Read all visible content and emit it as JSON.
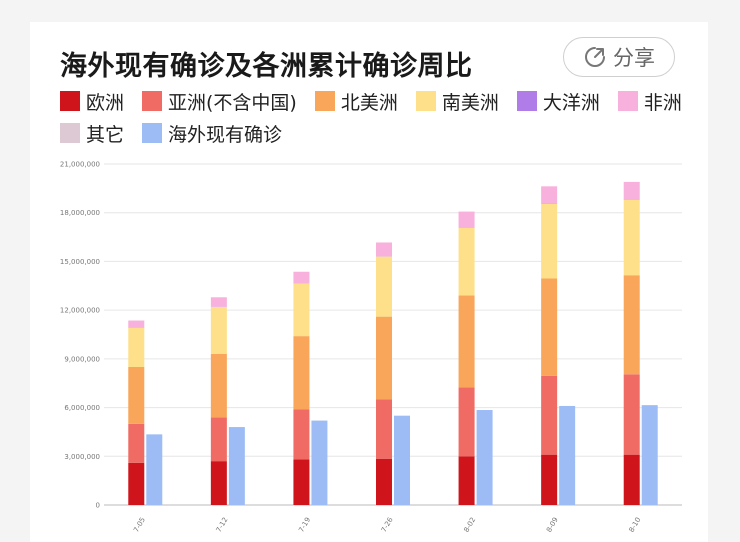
{
  "title": "海外现有确诊及各洲累计确诊周比",
  "share": {
    "label": "分享",
    "icon": "share-icon"
  },
  "colors": {
    "europe": "#d0141b",
    "asia": "#f06b63",
    "north_america": "#f9a65a",
    "south_america": "#fde089",
    "oceania": "#b07de8",
    "africa": "#f8b0dd",
    "other": "#dcc9d4",
    "active": "#9dbcf5"
  },
  "legend": [
    {
      "key": "europe",
      "label": "欧洲"
    },
    {
      "key": "asia",
      "label": "亚洲(不含中国)"
    },
    {
      "key": "north_america",
      "label": "北美洲"
    },
    {
      "key": "south_america",
      "label": "南美洲"
    },
    {
      "key": "oceania",
      "label": "大洋洲"
    },
    {
      "key": "africa",
      "label": "非洲"
    },
    {
      "key": "other",
      "label": "其它"
    },
    {
      "key": "active",
      "label": "海外现有确诊"
    }
  ],
  "chart_data": {
    "type": "bar",
    "stacked": true,
    "categories": [
      "7-05",
      "7-12",
      "7-19",
      "7-26",
      "8-02",
      "8-09",
      "8-10"
    ],
    "ylim": [
      0,
      21000000
    ],
    "yticks": [
      0,
      3000000,
      6000000,
      9000000,
      12000000,
      15000000,
      18000000,
      21000000
    ],
    "ytick_labels": [
      "0",
      "3,000,000",
      "6,000,000",
      "9,000,000",
      "12,000,000",
      "15,000,000",
      "18,000,000",
      "21,000,000"
    ],
    "grid": true,
    "stacked_series": [
      {
        "key": "europe",
        "values": [
          2600000,
          2700000,
          2800000,
          2850000,
          3000000,
          3100000,
          3100000
        ]
      },
      {
        "key": "asia",
        "values": [
          2400000,
          2700000,
          3100000,
          3650000,
          4250000,
          4850000,
          4950000
        ]
      },
      {
        "key": "north_america",
        "values": [
          3500000,
          3900000,
          4500000,
          5100000,
          5650000,
          6000000,
          6100000
        ]
      },
      {
        "key": "south_america",
        "values": [
          2400000,
          2900000,
          3250000,
          3700000,
          4200000,
          4600000,
          4650000
        ]
      },
      {
        "key": "oceania",
        "values": [
          10000,
          12000,
          14000,
          17000,
          20000,
          24000,
          25000
        ]
      },
      {
        "key": "africa",
        "values": [
          450000,
          580000,
          700000,
          850000,
          950000,
          1050000,
          1070000
        ]
      },
      {
        "key": "other",
        "values": [
          1000,
          1000,
          1000,
          1000,
          1000,
          1000,
          1000
        ]
      }
    ],
    "side_series": {
      "key": "active",
      "values": [
        4350000,
        4800000,
        5200000,
        5500000,
        5850000,
        6100000,
        6150000
      ]
    }
  }
}
